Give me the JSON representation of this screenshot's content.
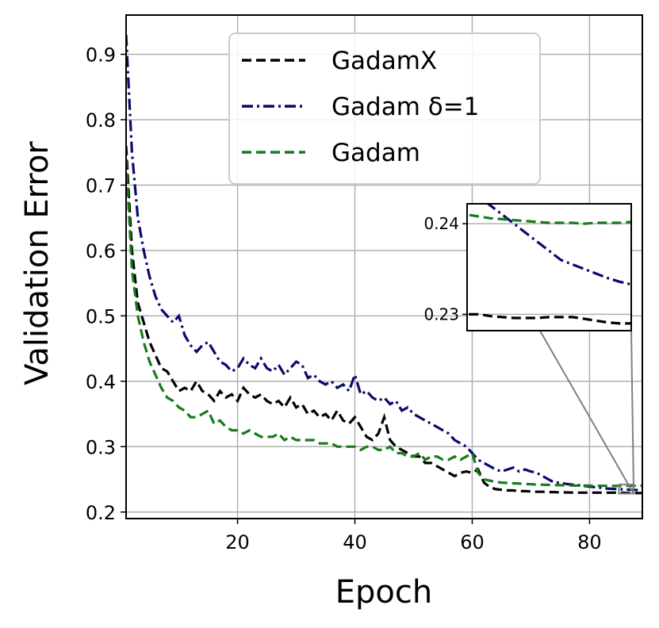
{
  "chart_data": {
    "type": "line",
    "xlabel": "Epoch",
    "ylabel": "Validation Error",
    "xlim": [
      1,
      89
    ],
    "ylim": [
      0.19,
      0.96
    ],
    "xticks": [
      20,
      40,
      60,
      80
    ],
    "yticks": [
      0.2,
      0.3,
      0.4,
      0.5,
      0.6,
      0.7,
      0.8,
      0.9
    ],
    "xtick_labels": [
      "20",
      "40",
      "60",
      "80"
    ],
    "ytick_labels": [
      "0.2",
      "0.3",
      "0.4",
      "0.5",
      "0.6",
      "0.7",
      "0.8",
      "0.9"
    ],
    "grid": true,
    "legend_position": "top-center",
    "series": [
      {
        "name": "GadamX",
        "color": "#000000",
        "dash": "dashed",
        "x": [
          1,
          2,
          3,
          4,
          5,
          6,
          7,
          8,
          9,
          10,
          11,
          12,
          13,
          14,
          15,
          16,
          17,
          18,
          19,
          20,
          21,
          22,
          23,
          24,
          25,
          26,
          27,
          28,
          29,
          30,
          31,
          32,
          33,
          34,
          35,
          36,
          37,
          38,
          39,
          40,
          41,
          42,
          43,
          44,
          45,
          46,
          47,
          48,
          49,
          50,
          51,
          52,
          53,
          54,
          55,
          56,
          57,
          58,
          59,
          60,
          61,
          62,
          63,
          64,
          65,
          66,
          67,
          68,
          69,
          70,
          71,
          72,
          73,
          74,
          75,
          76,
          77,
          78,
          79,
          80,
          81,
          82,
          83,
          84,
          85,
          86,
          87,
          88,
          89
        ],
        "y": [
          0.76,
          0.6,
          0.52,
          0.49,
          0.46,
          0.44,
          0.42,
          0.415,
          0.4,
          0.385,
          0.39,
          0.385,
          0.4,
          0.385,
          0.38,
          0.37,
          0.385,
          0.375,
          0.38,
          0.37,
          0.39,
          0.38,
          0.375,
          0.38,
          0.37,
          0.365,
          0.37,
          0.36,
          0.375,
          0.36,
          0.365,
          0.35,
          0.355,
          0.345,
          0.35,
          0.34,
          0.355,
          0.34,
          0.335,
          0.345,
          0.33,
          0.315,
          0.31,
          0.32,
          0.345,
          0.31,
          0.3,
          0.295,
          0.29,
          0.285,
          0.285,
          0.275,
          0.275,
          0.27,
          0.265,
          0.26,
          0.255,
          0.26,
          0.262,
          0.26,
          0.265,
          0.245,
          0.238,
          0.235,
          0.234,
          0.233,
          0.233,
          0.232,
          0.232,
          0.2315,
          0.231,
          0.231,
          0.2305,
          0.2305,
          0.23,
          0.23,
          0.2298,
          0.2297,
          0.2296,
          0.2296,
          0.2296,
          0.2297,
          0.2297,
          0.2297,
          0.2295,
          0.2293,
          0.2291,
          0.229,
          0.229
        ]
      },
      {
        "name": "Gadam δ=1",
        "color": "#0a0a6e",
        "dash": "dashdot",
        "x": [
          1,
          2,
          3,
          4,
          5,
          6,
          7,
          8,
          9,
          10,
          11,
          12,
          13,
          14,
          15,
          16,
          17,
          18,
          19,
          20,
          21,
          22,
          23,
          24,
          25,
          26,
          27,
          28,
          29,
          30,
          31,
          32,
          33,
          34,
          35,
          36,
          37,
          38,
          39,
          40,
          41,
          42,
          43,
          44,
          45,
          46,
          47,
          48,
          49,
          50,
          51,
          52,
          53,
          54,
          55,
          56,
          57,
          58,
          59,
          60,
          61,
          62,
          63,
          64,
          65,
          66,
          67,
          68,
          69,
          70,
          71,
          72,
          73,
          74,
          75,
          76,
          77,
          78,
          79,
          80,
          81,
          82,
          83,
          84,
          85,
          86,
          87,
          88,
          89
        ],
        "y": [
          0.93,
          0.75,
          0.65,
          0.6,
          0.56,
          0.53,
          0.51,
          0.5,
          0.49,
          0.5,
          0.47,
          0.455,
          0.445,
          0.455,
          0.46,
          0.445,
          0.43,
          0.425,
          0.415,
          0.42,
          0.435,
          0.425,
          0.42,
          0.435,
          0.42,
          0.415,
          0.425,
          0.41,
          0.42,
          0.43,
          0.425,
          0.405,
          0.41,
          0.4,
          0.395,
          0.4,
          0.39,
          0.395,
          0.385,
          0.41,
          0.38,
          0.385,
          0.375,
          0.37,
          0.375,
          0.365,
          0.37,
          0.355,
          0.36,
          0.35,
          0.345,
          0.34,
          0.335,
          0.33,
          0.325,
          0.32,
          0.31,
          0.305,
          0.3,
          0.29,
          0.28,
          0.275,
          0.27,
          0.265,
          0.262,
          0.265,
          0.268,
          0.262,
          0.265,
          0.262,
          0.26,
          0.255,
          0.25,
          0.245,
          0.245,
          0.243,
          0.242,
          0.241,
          0.24,
          0.239,
          0.238,
          0.237,
          0.236,
          0.2355,
          0.235,
          0.2345,
          0.234,
          0.2336,
          0.2333
        ]
      },
      {
        "name": "Gadam",
        "color": "#1a7a1a",
        "dash": "dashed",
        "x": [
          1,
          2,
          3,
          4,
          5,
          6,
          7,
          8,
          9,
          10,
          11,
          12,
          13,
          14,
          15,
          16,
          17,
          18,
          19,
          20,
          21,
          22,
          23,
          24,
          25,
          26,
          27,
          28,
          29,
          30,
          31,
          32,
          33,
          34,
          35,
          36,
          37,
          38,
          39,
          40,
          41,
          42,
          43,
          44,
          45,
          46,
          47,
          48,
          49,
          50,
          51,
          52,
          53,
          54,
          55,
          56,
          57,
          58,
          59,
          60,
          61,
          62,
          63,
          64,
          65,
          66,
          67,
          68,
          69,
          70,
          71,
          72,
          73,
          74,
          75,
          76,
          77,
          78,
          79,
          80,
          81,
          82,
          83,
          84,
          85,
          86,
          87,
          88,
          89
        ],
        "y": [
          0.74,
          0.57,
          0.5,
          0.46,
          0.43,
          0.41,
          0.39,
          0.375,
          0.37,
          0.36,
          0.355,
          0.345,
          0.345,
          0.35,
          0.355,
          0.335,
          0.34,
          0.33,
          0.325,
          0.325,
          0.32,
          0.325,
          0.32,
          0.315,
          0.315,
          0.315,
          0.32,
          0.31,
          0.315,
          0.31,
          0.31,
          0.31,
          0.31,
          0.305,
          0.305,
          0.305,
          0.3,
          0.3,
          0.3,
          0.3,
          0.295,
          0.3,
          0.3,
          0.295,
          0.295,
          0.3,
          0.29,
          0.29,
          0.285,
          0.285,
          0.29,
          0.28,
          0.285,
          0.285,
          0.28,
          0.28,
          0.285,
          0.28,
          0.285,
          0.29,
          0.26,
          0.25,
          0.248,
          0.246,
          0.245,
          0.2445,
          0.244,
          0.2435,
          0.243,
          0.2425,
          0.242,
          0.2418,
          0.2415,
          0.2412,
          0.241,
          0.2408,
          0.2406,
          0.2405,
          0.2404,
          0.2403,
          0.2402,
          0.2401,
          0.2401,
          0.2401,
          0.24,
          0.2401,
          0.2401,
          0.2401,
          0.2402
        ]
      }
    ],
    "inset": {
      "xlim": [
        75,
        89
      ],
      "ylim": [
        0.2282,
        0.2422
      ],
      "yticks": [
        0.23,
        0.24
      ],
      "ytick_labels": [
        "0.23",
        "0.24"
      ],
      "grid": true
    }
  }
}
